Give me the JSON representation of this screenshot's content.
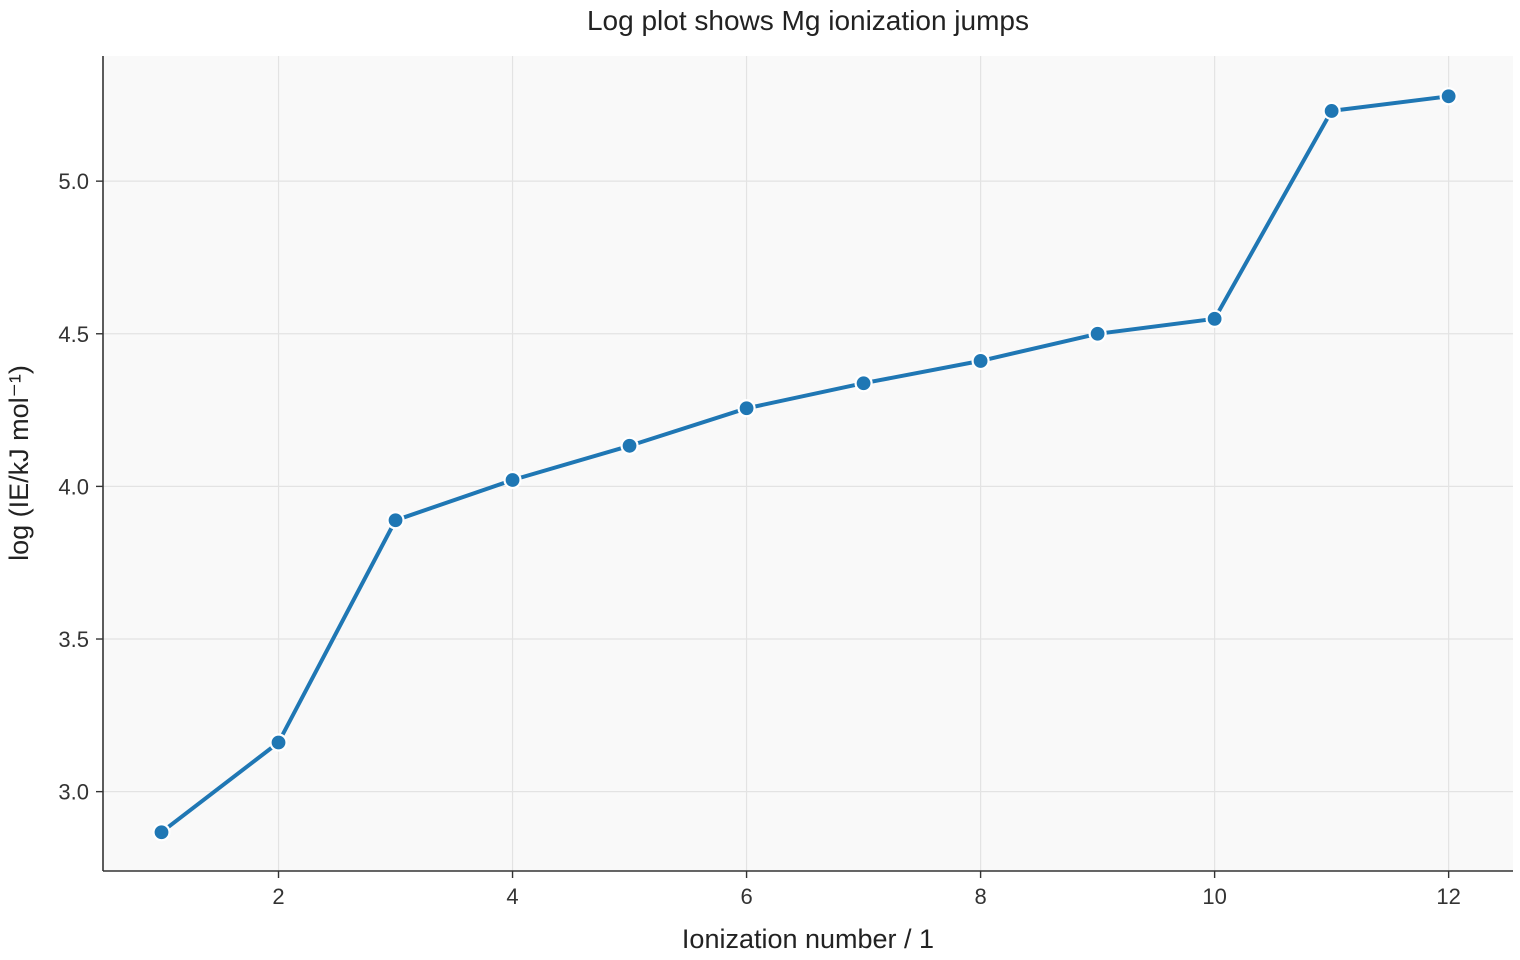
{
  "chart_data": {
    "type": "line",
    "title": "Log plot shows Mg ionization jumps",
    "xlabel": "Ionization number / 1",
    "ylabel": "log  (IE/kJ mol⁻¹)",
    "xlim": [
      0.5,
      12.55
    ],
    "ylim": [
      2.74,
      5.41
    ],
    "xticks": [
      2,
      4,
      6,
      8,
      10,
      12
    ],
    "xtick_labels": [
      "2",
      "4",
      "6",
      "8",
      "10",
      "12"
    ],
    "yticks": [
      3.0,
      3.5,
      4.0,
      4.5,
      5.0
    ],
    "ytick_labels": [
      "3.0",
      "3.5",
      "4.0",
      "4.5",
      "5.0"
    ],
    "grid": true,
    "series": [
      {
        "color": "#1f77b4",
        "x": [
          1,
          2,
          3,
          4,
          5,
          6,
          7,
          8,
          9,
          10,
          11,
          12
        ],
        "y": [
          2.867,
          3.161,
          3.889,
          4.021,
          4.133,
          4.256,
          4.338,
          4.411,
          4.5,
          4.549,
          5.23,
          5.278
        ]
      }
    ],
    "colors": {
      "plot_background": "#f9f9f9",
      "grid": "#e3e3e3",
      "axis": "#333333",
      "marker_edge": "#ffffff"
    }
  }
}
